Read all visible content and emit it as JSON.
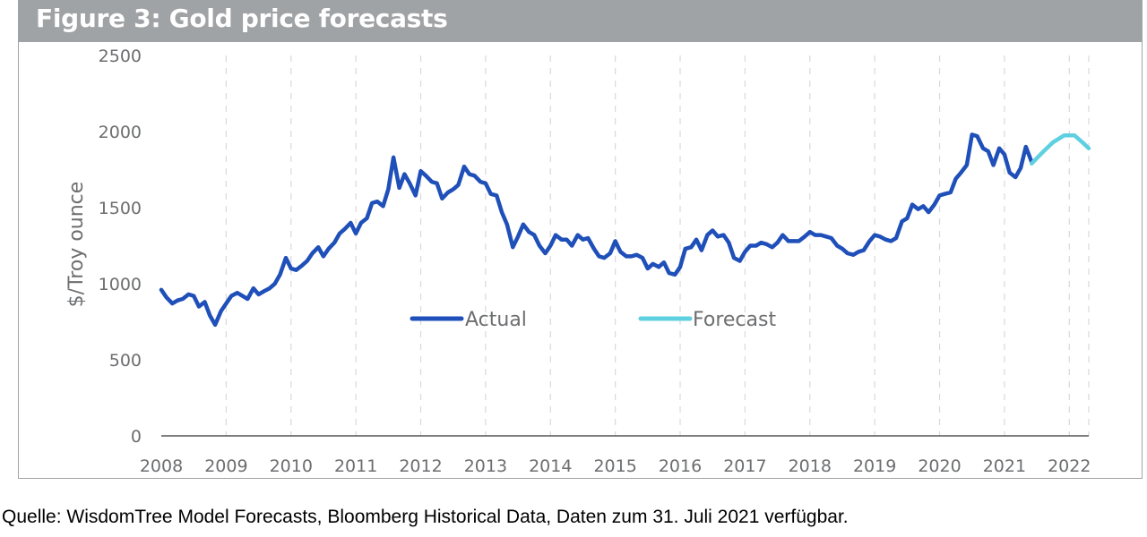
{
  "figure": {
    "title": "Figure 3: Gold price forecasts",
    "source": "Quelle: WisdomTree Model Forecasts, Bloomberg Historical Data, Daten zum 31. Juli 2021 verfügbar."
  },
  "chart_data": {
    "type": "line",
    "title": "Figure 3: Gold price forecasts",
    "xlabel": "",
    "ylabel": "$/Troy ounce",
    "xlim": [
      2008,
      2022.3
    ],
    "ylim": [
      0,
      2500
    ],
    "x_ticks": [
      "2008",
      "2009",
      "2010",
      "2011",
      "2012",
      "2013",
      "2014",
      "2015",
      "2016",
      "2017",
      "2018",
      "2019",
      "2020",
      "2021",
      "2022"
    ],
    "y_ticks": [
      "0",
      "500",
      "1000",
      "1500",
      "2000",
      "2500"
    ],
    "grid": "vertical dashed",
    "legend_position": "center",
    "colors": {
      "actual": "#1f4fb8",
      "forecast": "#5fd0e0",
      "axis": "#6d6e70",
      "grid": "#d9d9d9"
    },
    "series": [
      {
        "name": "Actual",
        "points": [
          [
            2008.0,
            960
          ],
          [
            2008.08,
            910
          ],
          [
            2008.17,
            870
          ],
          [
            2008.25,
            890
          ],
          [
            2008.33,
            900
          ],
          [
            2008.42,
            930
          ],
          [
            2008.5,
            920
          ],
          [
            2008.58,
            850
          ],
          [
            2008.67,
            880
          ],
          [
            2008.75,
            790
          ],
          [
            2008.83,
            730
          ],
          [
            2008.92,
            820
          ],
          [
            2009.0,
            870
          ],
          [
            2009.08,
            920
          ],
          [
            2009.17,
            940
          ],
          [
            2009.25,
            920
          ],
          [
            2009.33,
            900
          ],
          [
            2009.42,
            970
          ],
          [
            2009.5,
            930
          ],
          [
            2009.58,
            950
          ],
          [
            2009.67,
            970
          ],
          [
            2009.75,
            1000
          ],
          [
            2009.83,
            1060
          ],
          [
            2009.92,
            1170
          ],
          [
            2010.0,
            1100
          ],
          [
            2010.08,
            1090
          ],
          [
            2010.17,
            1120
          ],
          [
            2010.25,
            1150
          ],
          [
            2010.33,
            1200
          ],
          [
            2010.42,
            1240
          ],
          [
            2010.5,
            1180
          ],
          [
            2010.58,
            1230
          ],
          [
            2010.67,
            1270
          ],
          [
            2010.75,
            1330
          ],
          [
            2010.83,
            1360
          ],
          [
            2010.92,
            1400
          ],
          [
            2011.0,
            1330
          ],
          [
            2011.08,
            1400
          ],
          [
            2011.17,
            1430
          ],
          [
            2011.25,
            1530
          ],
          [
            2011.33,
            1540
          ],
          [
            2011.42,
            1510
          ],
          [
            2011.5,
            1620
          ],
          [
            2011.58,
            1830
          ],
          [
            2011.67,
            1630
          ],
          [
            2011.75,
            1720
          ],
          [
            2011.83,
            1660
          ],
          [
            2011.92,
            1580
          ],
          [
            2012.0,
            1740
          ],
          [
            2012.08,
            1710
          ],
          [
            2012.17,
            1670
          ],
          [
            2012.25,
            1660
          ],
          [
            2012.33,
            1560
          ],
          [
            2012.42,
            1600
          ],
          [
            2012.5,
            1620
          ],
          [
            2012.58,
            1650
          ],
          [
            2012.67,
            1770
          ],
          [
            2012.75,
            1720
          ],
          [
            2012.83,
            1710
          ],
          [
            2012.92,
            1670
          ],
          [
            2013.0,
            1660
          ],
          [
            2013.08,
            1590
          ],
          [
            2013.17,
            1580
          ],
          [
            2013.25,
            1470
          ],
          [
            2013.33,
            1390
          ],
          [
            2013.42,
            1240
          ],
          [
            2013.5,
            1310
          ],
          [
            2013.58,
            1390
          ],
          [
            2013.67,
            1340
          ],
          [
            2013.75,
            1320
          ],
          [
            2013.83,
            1250
          ],
          [
            2013.92,
            1200
          ],
          [
            2014.0,
            1250
          ],
          [
            2014.08,
            1320
          ],
          [
            2014.17,
            1290
          ],
          [
            2014.25,
            1290
          ],
          [
            2014.33,
            1250
          ],
          [
            2014.42,
            1320
          ],
          [
            2014.5,
            1290
          ],
          [
            2014.58,
            1300
          ],
          [
            2014.67,
            1230
          ],
          [
            2014.75,
            1180
          ],
          [
            2014.83,
            1170
          ],
          [
            2014.92,
            1200
          ],
          [
            2015.0,
            1280
          ],
          [
            2015.08,
            1210
          ],
          [
            2015.17,
            1180
          ],
          [
            2015.25,
            1180
          ],
          [
            2015.33,
            1190
          ],
          [
            2015.42,
            1170
          ],
          [
            2015.5,
            1100
          ],
          [
            2015.58,
            1130
          ],
          [
            2015.67,
            1110
          ],
          [
            2015.75,
            1140
          ],
          [
            2015.83,
            1070
          ],
          [
            2015.92,
            1060
          ],
          [
            2016.0,
            1110
          ],
          [
            2016.08,
            1230
          ],
          [
            2016.17,
            1240
          ],
          [
            2016.25,
            1290
          ],
          [
            2016.33,
            1220
          ],
          [
            2016.42,
            1320
          ],
          [
            2016.5,
            1350
          ],
          [
            2016.58,
            1310
          ],
          [
            2016.67,
            1320
          ],
          [
            2016.75,
            1270
          ],
          [
            2016.83,
            1170
          ],
          [
            2016.92,
            1150
          ],
          [
            2017.0,
            1210
          ],
          [
            2017.08,
            1250
          ],
          [
            2017.17,
            1250
          ],
          [
            2017.25,
            1270
          ],
          [
            2017.33,
            1260
          ],
          [
            2017.42,
            1240
          ],
          [
            2017.5,
            1270
          ],
          [
            2017.58,
            1320
          ],
          [
            2017.67,
            1280
          ],
          [
            2017.75,
            1280
          ],
          [
            2017.83,
            1280
          ],
          [
            2017.92,
            1310
          ],
          [
            2018.0,
            1340
          ],
          [
            2018.08,
            1320
          ],
          [
            2018.17,
            1320
          ],
          [
            2018.25,
            1310
          ],
          [
            2018.33,
            1300
          ],
          [
            2018.42,
            1250
          ],
          [
            2018.5,
            1230
          ],
          [
            2018.58,
            1200
          ],
          [
            2018.67,
            1190
          ],
          [
            2018.75,
            1210
          ],
          [
            2018.83,
            1220
          ],
          [
            2018.92,
            1280
          ],
          [
            2019.0,
            1320
          ],
          [
            2019.08,
            1310
          ],
          [
            2019.17,
            1290
          ],
          [
            2019.25,
            1280
          ],
          [
            2019.33,
            1300
          ],
          [
            2019.42,
            1410
          ],
          [
            2019.5,
            1430
          ],
          [
            2019.58,
            1520
          ],
          [
            2019.67,
            1490
          ],
          [
            2019.75,
            1510
          ],
          [
            2019.83,
            1470
          ],
          [
            2019.92,
            1520
          ],
          [
            2020.0,
            1580
          ],
          [
            2020.08,
            1590
          ],
          [
            2020.17,
            1600
          ],
          [
            2020.25,
            1690
          ],
          [
            2020.33,
            1730
          ],
          [
            2020.42,
            1780
          ],
          [
            2020.5,
            1980
          ],
          [
            2020.58,
            1970
          ],
          [
            2020.67,
            1890
          ],
          [
            2020.75,
            1870
          ],
          [
            2020.83,
            1780
          ],
          [
            2020.92,
            1890
          ],
          [
            2021.0,
            1850
          ],
          [
            2021.08,
            1730
          ],
          [
            2021.17,
            1700
          ],
          [
            2021.25,
            1760
          ],
          [
            2021.33,
            1900
          ],
          [
            2021.42,
            1800
          ]
        ]
      },
      {
        "name": "Forecast",
        "points": [
          [
            2021.42,
            1790
          ],
          [
            2021.58,
            1860
          ],
          [
            2021.75,
            1930
          ],
          [
            2021.92,
            1975
          ],
          [
            2022.08,
            1975
          ],
          [
            2022.2,
            1930
          ],
          [
            2022.3,
            1890
          ]
        ]
      }
    ]
  }
}
